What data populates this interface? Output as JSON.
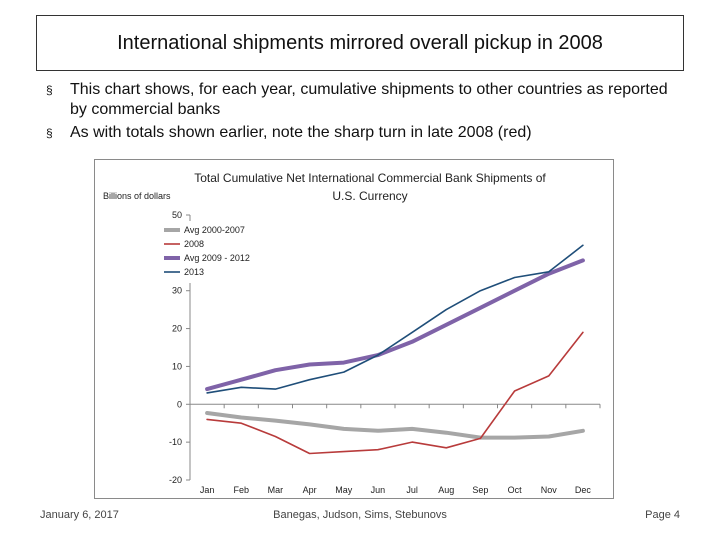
{
  "slide": {
    "title": "International shipments mirrored overall pickup in 2008",
    "bullets": [
      "This chart shows, for each year, cumulative shipments to other countries as reported by commercial banks",
      "As with totals shown earlier, note the sharp turn in late 2008 (red)"
    ],
    "bullet_mark": "§",
    "footer": {
      "date": "January 6, 2017",
      "authors": "Banegas, Judson, Sims, Stebunovs",
      "page": "Page 4"
    }
  },
  "chart_data": {
    "type": "line",
    "title_line1": "Total  Cumulative Net International Commercial Bank Shipments of",
    "title_line2": "U.S. Currency",
    "ylabel": "Billions of dollars",
    "categories": [
      "Jan",
      "Feb",
      "Mar",
      "Apr",
      "May",
      "Jun",
      "Jul",
      "Aug",
      "Sep",
      "Oct",
      "Nov",
      "Dec"
    ],
    "ylim": [
      -20,
      50
    ],
    "yticks": [
      -20,
      -10,
      0,
      10,
      20,
      30,
      40,
      50
    ],
    "ytick_labels": [
      "-20",
      "-10",
      "0",
      "10",
      "20",
      "30",
      "",
      "50"
    ],
    "legend_position": "top-left",
    "series": [
      {
        "name": "Avg 2000-2007",
        "color": "#a6a6a6",
        "width": 4,
        "values": [
          -2.3,
          -3.5,
          -4.3,
          -5.3,
          -6.5,
          -7.0,
          -6.5,
          -7.5,
          -8.8,
          -8.8,
          -8.5,
          -7.0
        ]
      },
      {
        "name": "2008",
        "color": "#b83b3b",
        "width": 1.6,
        "values": [
          -4.0,
          -5.0,
          -8.5,
          -13.0,
          -12.5,
          -12.0,
          -10.0,
          -11.5,
          -9.0,
          3.5,
          7.5,
          19.0
        ]
      },
      {
        "name": "Avg 2009 - 2012",
        "color": "#7f63a8",
        "width": 4,
        "values": [
          4.0,
          6.5,
          9.0,
          10.5,
          11.0,
          13.0,
          16.5,
          21.0,
          25.5,
          30.0,
          34.5,
          38.0
        ]
      },
      {
        "name": "2013",
        "color": "#1f4e79",
        "width": 1.6,
        "values": [
          3.0,
          4.5,
          4.0,
          6.5,
          8.5,
          13.0,
          19.0,
          25.0,
          30.0,
          33.5,
          35.0,
          42.0
        ]
      }
    ]
  }
}
